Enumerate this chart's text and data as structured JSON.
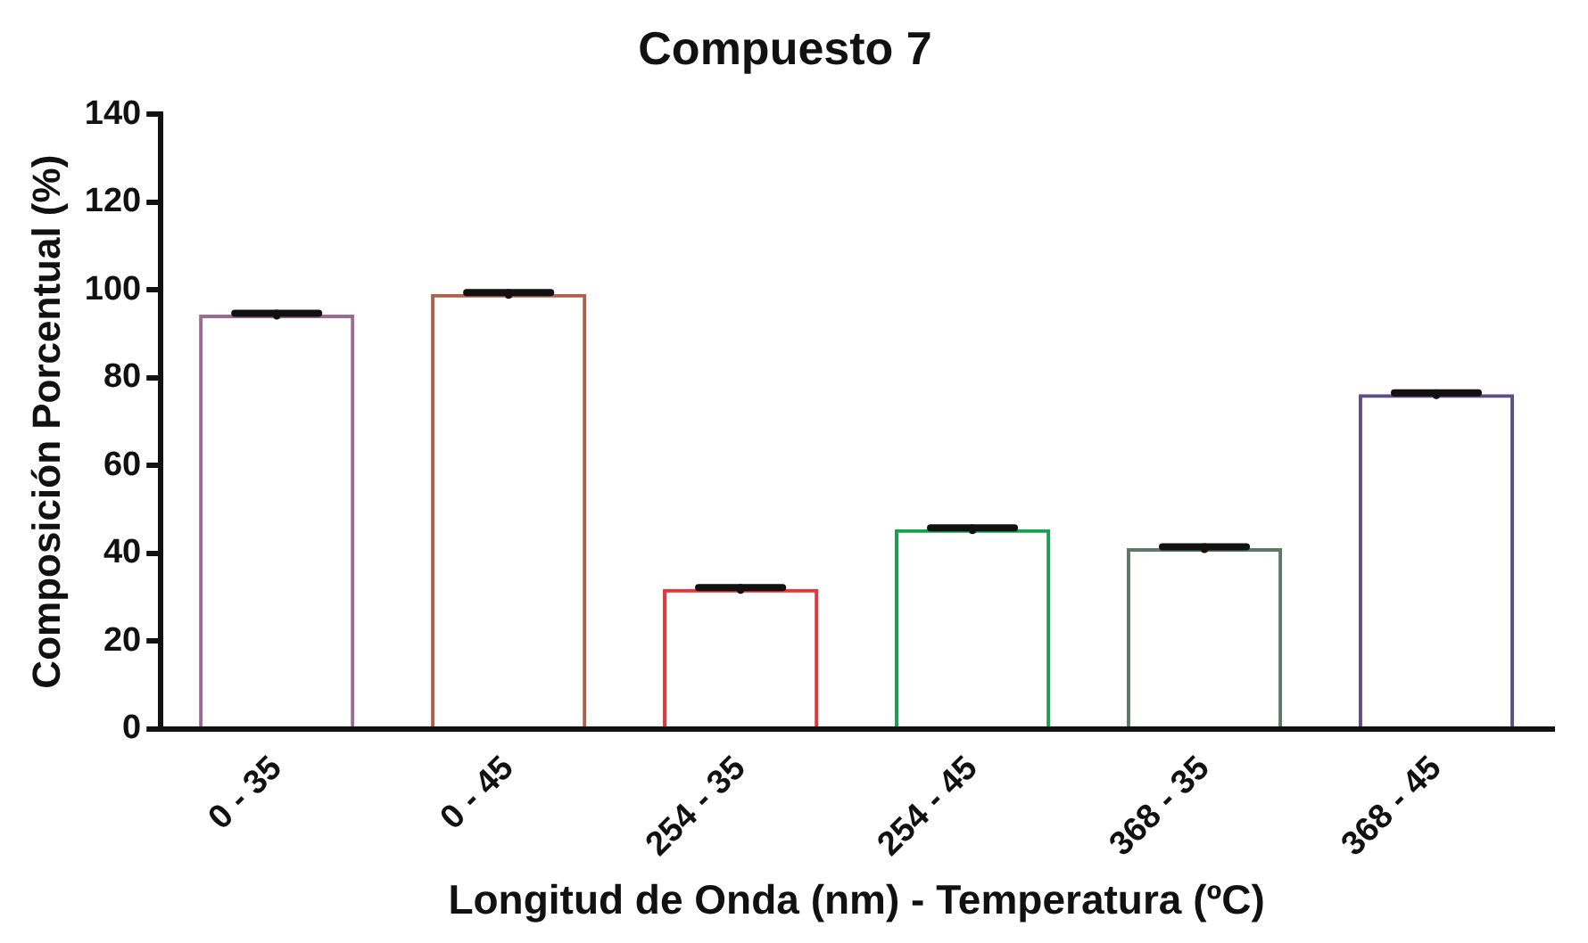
{
  "chart_data": {
    "type": "bar",
    "title": "Compuesto 7",
    "xlabel": "Longitud de Onda (nm) - Temperatura (ºC)",
    "ylabel": "Composición Porcentual (%)",
    "categories": [
      "0 - 35",
      "0 - 45",
      "254 - 35",
      "254 - 45",
      "368 - 35",
      "368 - 45"
    ],
    "values": [
      94.4,
      99.1,
      31.9,
      45.5,
      41.2,
      76.3
    ],
    "errors": [
      0.3,
      0.3,
      0.3,
      0.3,
      0.3,
      0.3
    ],
    "colors": [
      "#9b6b94",
      "#b0604c",
      "#e8343a",
      "#18a050",
      "#5e7a66",
      "#5e4e88"
    ],
    "ylim": [
      0,
      140
    ],
    "yticks": [
      0,
      20,
      40,
      60,
      80,
      100,
      120,
      140
    ],
    "grid": false,
    "legend": false
  }
}
